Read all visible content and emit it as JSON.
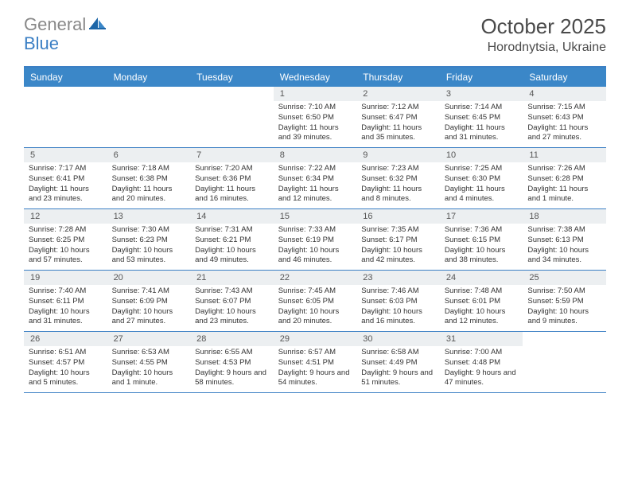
{
  "brand": {
    "gray": "General",
    "blue": "Blue"
  },
  "title": "October 2025",
  "location": "Horodnytsia, Ukraine",
  "colors": {
    "header_bg": "#3b87c8",
    "border": "#3b7fc4",
    "daynum_bg": "#eceff1",
    "text": "#333333",
    "logo_gray": "#888888"
  },
  "dayNames": [
    "Sunday",
    "Monday",
    "Tuesday",
    "Wednesday",
    "Thursday",
    "Friday",
    "Saturday"
  ],
  "weeks": [
    [
      null,
      null,
      null,
      {
        "n": "1",
        "sr": "Sunrise: 7:10 AM",
        "ss": "Sunset: 6:50 PM",
        "dl": "Daylight: 11 hours and 39 minutes."
      },
      {
        "n": "2",
        "sr": "Sunrise: 7:12 AM",
        "ss": "Sunset: 6:47 PM",
        "dl": "Daylight: 11 hours and 35 minutes."
      },
      {
        "n": "3",
        "sr": "Sunrise: 7:14 AM",
        "ss": "Sunset: 6:45 PM",
        "dl": "Daylight: 11 hours and 31 minutes."
      },
      {
        "n": "4",
        "sr": "Sunrise: 7:15 AM",
        "ss": "Sunset: 6:43 PM",
        "dl": "Daylight: 11 hours and 27 minutes."
      }
    ],
    [
      {
        "n": "5",
        "sr": "Sunrise: 7:17 AM",
        "ss": "Sunset: 6:41 PM",
        "dl": "Daylight: 11 hours and 23 minutes."
      },
      {
        "n": "6",
        "sr": "Sunrise: 7:18 AM",
        "ss": "Sunset: 6:38 PM",
        "dl": "Daylight: 11 hours and 20 minutes."
      },
      {
        "n": "7",
        "sr": "Sunrise: 7:20 AM",
        "ss": "Sunset: 6:36 PM",
        "dl": "Daylight: 11 hours and 16 minutes."
      },
      {
        "n": "8",
        "sr": "Sunrise: 7:22 AM",
        "ss": "Sunset: 6:34 PM",
        "dl": "Daylight: 11 hours and 12 minutes."
      },
      {
        "n": "9",
        "sr": "Sunrise: 7:23 AM",
        "ss": "Sunset: 6:32 PM",
        "dl": "Daylight: 11 hours and 8 minutes."
      },
      {
        "n": "10",
        "sr": "Sunrise: 7:25 AM",
        "ss": "Sunset: 6:30 PM",
        "dl": "Daylight: 11 hours and 4 minutes."
      },
      {
        "n": "11",
        "sr": "Sunrise: 7:26 AM",
        "ss": "Sunset: 6:28 PM",
        "dl": "Daylight: 11 hours and 1 minute."
      }
    ],
    [
      {
        "n": "12",
        "sr": "Sunrise: 7:28 AM",
        "ss": "Sunset: 6:25 PM",
        "dl": "Daylight: 10 hours and 57 minutes."
      },
      {
        "n": "13",
        "sr": "Sunrise: 7:30 AM",
        "ss": "Sunset: 6:23 PM",
        "dl": "Daylight: 10 hours and 53 minutes."
      },
      {
        "n": "14",
        "sr": "Sunrise: 7:31 AM",
        "ss": "Sunset: 6:21 PM",
        "dl": "Daylight: 10 hours and 49 minutes."
      },
      {
        "n": "15",
        "sr": "Sunrise: 7:33 AM",
        "ss": "Sunset: 6:19 PM",
        "dl": "Daylight: 10 hours and 46 minutes."
      },
      {
        "n": "16",
        "sr": "Sunrise: 7:35 AM",
        "ss": "Sunset: 6:17 PM",
        "dl": "Daylight: 10 hours and 42 minutes."
      },
      {
        "n": "17",
        "sr": "Sunrise: 7:36 AM",
        "ss": "Sunset: 6:15 PM",
        "dl": "Daylight: 10 hours and 38 minutes."
      },
      {
        "n": "18",
        "sr": "Sunrise: 7:38 AM",
        "ss": "Sunset: 6:13 PM",
        "dl": "Daylight: 10 hours and 34 minutes."
      }
    ],
    [
      {
        "n": "19",
        "sr": "Sunrise: 7:40 AM",
        "ss": "Sunset: 6:11 PM",
        "dl": "Daylight: 10 hours and 31 minutes."
      },
      {
        "n": "20",
        "sr": "Sunrise: 7:41 AM",
        "ss": "Sunset: 6:09 PM",
        "dl": "Daylight: 10 hours and 27 minutes."
      },
      {
        "n": "21",
        "sr": "Sunrise: 7:43 AM",
        "ss": "Sunset: 6:07 PM",
        "dl": "Daylight: 10 hours and 23 minutes."
      },
      {
        "n": "22",
        "sr": "Sunrise: 7:45 AM",
        "ss": "Sunset: 6:05 PM",
        "dl": "Daylight: 10 hours and 20 minutes."
      },
      {
        "n": "23",
        "sr": "Sunrise: 7:46 AM",
        "ss": "Sunset: 6:03 PM",
        "dl": "Daylight: 10 hours and 16 minutes."
      },
      {
        "n": "24",
        "sr": "Sunrise: 7:48 AM",
        "ss": "Sunset: 6:01 PM",
        "dl": "Daylight: 10 hours and 12 minutes."
      },
      {
        "n": "25",
        "sr": "Sunrise: 7:50 AM",
        "ss": "Sunset: 5:59 PM",
        "dl": "Daylight: 10 hours and 9 minutes."
      }
    ],
    [
      {
        "n": "26",
        "sr": "Sunrise: 6:51 AM",
        "ss": "Sunset: 4:57 PM",
        "dl": "Daylight: 10 hours and 5 minutes."
      },
      {
        "n": "27",
        "sr": "Sunrise: 6:53 AM",
        "ss": "Sunset: 4:55 PM",
        "dl": "Daylight: 10 hours and 1 minute."
      },
      {
        "n": "28",
        "sr": "Sunrise: 6:55 AM",
        "ss": "Sunset: 4:53 PM",
        "dl": "Daylight: 9 hours and 58 minutes."
      },
      {
        "n": "29",
        "sr": "Sunrise: 6:57 AM",
        "ss": "Sunset: 4:51 PM",
        "dl": "Daylight: 9 hours and 54 minutes."
      },
      {
        "n": "30",
        "sr": "Sunrise: 6:58 AM",
        "ss": "Sunset: 4:49 PM",
        "dl": "Daylight: 9 hours and 51 minutes."
      },
      {
        "n": "31",
        "sr": "Sunrise: 7:00 AM",
        "ss": "Sunset: 4:48 PM",
        "dl": "Daylight: 9 hours and 47 minutes."
      },
      null
    ]
  ]
}
